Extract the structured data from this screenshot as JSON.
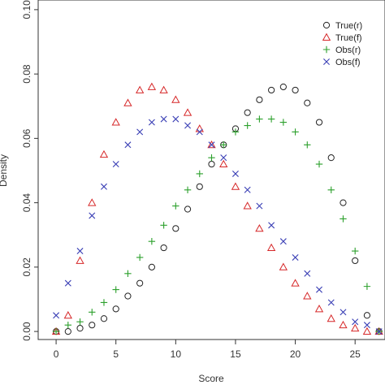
{
  "chart_data": {
    "type": "scatter",
    "xlabel": "Score",
    "ylabel": "Density",
    "xlim": [
      -1.5,
      27.5
    ],
    "ylim": [
      -0.0025,
      0.103
    ],
    "x_ticks": [
      0,
      5,
      10,
      15,
      20,
      25
    ],
    "y_ticks": [
      0.0,
      0.02,
      0.04,
      0.06,
      0.08,
      0.1
    ],
    "y_tick_labels": [
      "0.00",
      "0.02",
      "0.04",
      "0.06",
      "0.08",
      "0.10"
    ],
    "legend_position": "top-right",
    "grid": false,
    "series": [
      {
        "name": "True(r)",
        "marker": "circle",
        "color": "#222222",
        "x": [
          0,
          1,
          2,
          3,
          4,
          5,
          6,
          7,
          8,
          9,
          10,
          11,
          12,
          13,
          14,
          15,
          16,
          17,
          18,
          19,
          20,
          21,
          22,
          23,
          24,
          25,
          26,
          27
        ],
        "y": [
          0.0,
          0.0,
          0.001,
          0.002,
          0.004,
          0.007,
          0.011,
          0.015,
          0.02,
          0.026,
          0.032,
          0.038,
          0.045,
          0.052,
          0.058,
          0.063,
          0.068,
          0.072,
          0.075,
          0.076,
          0.075,
          0.071,
          0.065,
          0.054,
          0.04,
          0.022,
          0.005,
          0.0
        ]
      },
      {
        "name": "True(f)",
        "marker": "triangle",
        "color": "#d62728",
        "x": [
          0,
          1,
          2,
          3,
          4,
          5,
          6,
          7,
          8,
          9,
          10,
          11,
          12,
          13,
          14,
          15,
          16,
          17,
          18,
          19,
          20,
          21,
          22,
          23,
          24,
          25,
          26,
          27
        ],
        "y": [
          0.0,
          0.005,
          0.022,
          0.04,
          0.055,
          0.065,
          0.071,
          0.075,
          0.076,
          0.075,
          0.072,
          0.068,
          0.063,
          0.058,
          0.052,
          0.045,
          0.039,
          0.032,
          0.026,
          0.02,
          0.015,
          0.011,
          0.007,
          0.004,
          0.002,
          0.001,
          0.0,
          0.0
        ]
      },
      {
        "name": "Obs(r)",
        "marker": "plus",
        "color": "#2ca02c",
        "x": [
          0,
          1,
          2,
          3,
          4,
          5,
          6,
          7,
          8,
          9,
          10,
          11,
          12,
          13,
          14,
          15,
          16,
          17,
          18,
          19,
          20,
          21,
          22,
          23,
          24,
          25,
          26,
          27
        ],
        "y": [
          0.0,
          0.002,
          0.003,
          0.006,
          0.009,
          0.013,
          0.018,
          0.023,
          0.028,
          0.033,
          0.039,
          0.044,
          0.049,
          0.054,
          0.058,
          0.062,
          0.064,
          0.066,
          0.066,
          0.065,
          0.062,
          0.058,
          0.052,
          0.044,
          0.035,
          0.025,
          0.014,
          0.0
        ]
      },
      {
        "name": "Obs(f)",
        "marker": "cross",
        "color": "#3a3fb5",
        "x": [
          0,
          1,
          2,
          3,
          4,
          5,
          6,
          7,
          8,
          9,
          10,
          11,
          12,
          13,
          14,
          15,
          16,
          17,
          18,
          19,
          20,
          21,
          22,
          23,
          24,
          25,
          26,
          27
        ],
        "y": [
          0.005,
          0.015,
          0.025,
          0.036,
          0.045,
          0.052,
          0.058,
          0.062,
          0.065,
          0.066,
          0.066,
          0.064,
          0.062,
          0.058,
          0.054,
          0.049,
          0.044,
          0.039,
          0.033,
          0.028,
          0.023,
          0.018,
          0.013,
          0.009,
          0.006,
          0.003,
          0.002,
          0.0
        ]
      }
    ]
  }
}
